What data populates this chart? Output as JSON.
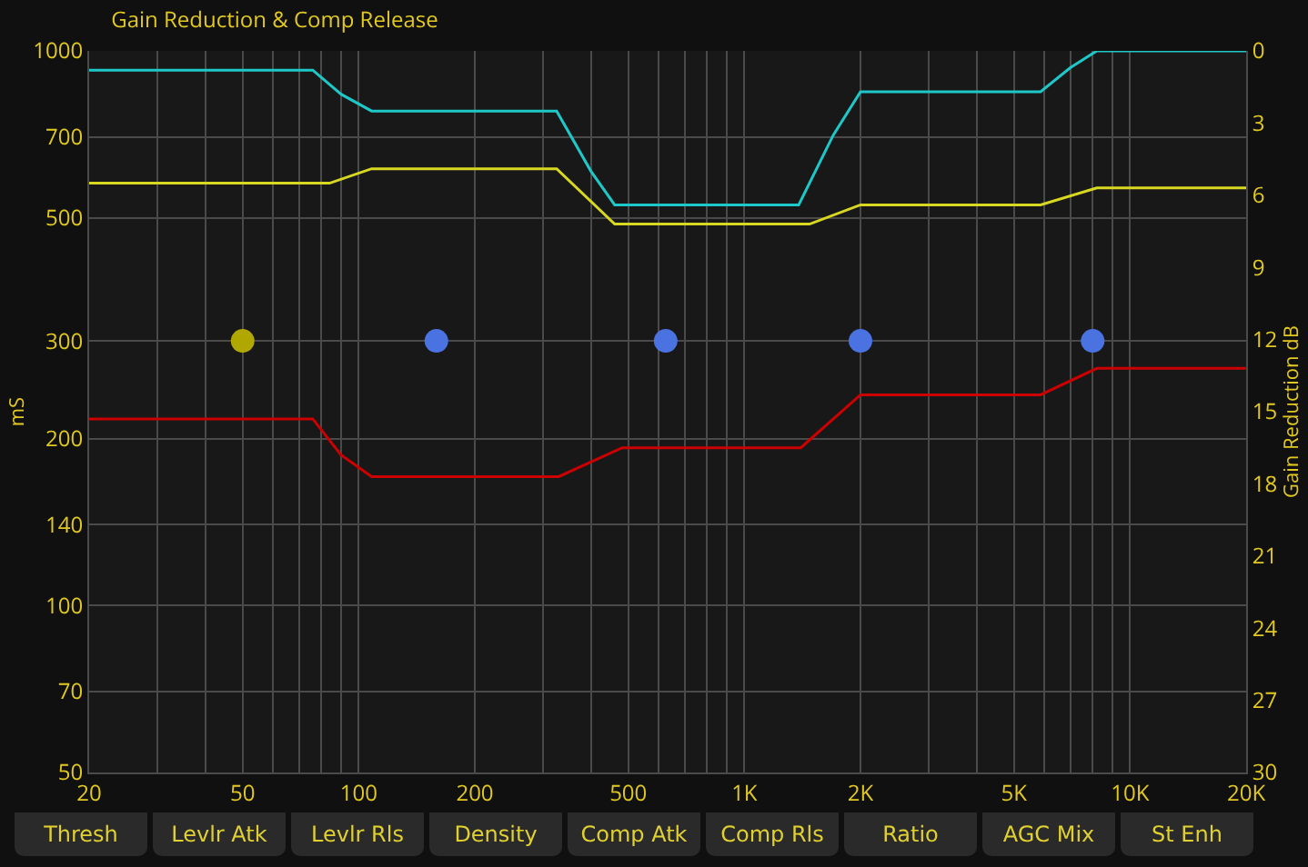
{
  "chart_data": {
    "type": "line",
    "title": "Gain Reduction & Comp Release",
    "ylabel": "mS",
    "y2label": "Gain Reduction dB",
    "log": "xy",
    "grid": true,
    "marker": "none",
    "line_style": "solid",
    "xlim": [
      20,
      20000
    ],
    "xticks": [
      20,
      {
        "value": 30,
        "label": null
      },
      {
        "value": 40,
        "label": null
      },
      50,
      {
        "value": 60,
        "label": null
      },
      {
        "value": 70,
        "label": null
      },
      {
        "value": 80,
        "label": null
      },
      {
        "value": 90,
        "label": null
      },
      100,
      200,
      {
        "value": 300,
        "label": null
      },
      {
        "value": 400,
        "label": null
      },
      500,
      {
        "value": 600,
        "label": null
      },
      {
        "value": 700,
        "label": null
      },
      {
        "value": 800,
        "label": null
      },
      {
        "value": 900,
        "label": null
      },
      {
        "value": 1000,
        "label": "1K"
      },
      {
        "value": 2000,
        "label": "2K"
      },
      {
        "value": 3000,
        "label": null
      },
      {
        "value": 4000,
        "label": null
      },
      {
        "value": 5000,
        "label": "5K"
      },
      {
        "value": 6000,
        "label": null
      },
      {
        "value": 7000,
        "label": null
      },
      {
        "value": 8000,
        "label": null
      },
      {
        "value": 9000,
        "label": null
      },
      {
        "value": 10000,
        "label": "10K"
      },
      {
        "value": 20000,
        "label": "20K"
      }
    ],
    "ylim": [
      50,
      1000
    ],
    "yticks": [
      50,
      70,
      100,
      140,
      200,
      300,
      500,
      700,
      1000
    ],
    "y2lim": [
      30,
      0
    ],
    "y2ticks": [
      0,
      3,
      6,
      9,
      12,
      15,
      18,
      21,
      24,
      27,
      30
    ],
    "series": [
      {
        "color": "#1fc8c8",
        "axis": "y2",
        "x": [
          20,
          76,
          90,
          108,
          326,
          400,
          461,
          1383,
          1700,
          2000,
          5861,
          7000,
          8200,
          20000
        ],
        "values": [
          0.8,
          0.8,
          1.8,
          2.5,
          2.5,
          5.0,
          6.4,
          6.4,
          3.5,
          1.7,
          1.7,
          0.7,
          0,
          0
        ]
      },
      {
        "color": "#d8d820",
        "axis": "y2",
        "x": [
          20,
          84,
          108,
          326,
          461,
          1476,
          2000,
          5861,
          8200,
          20000
        ],
        "values": [
          5.5,
          5.5,
          4.9,
          4.9,
          7.2,
          7.2,
          6.4,
          6.4,
          5.7,
          5.7
        ]
      },
      {
        "color": "#cc0000",
        "axis": "y2",
        "x": [
          20,
          76,
          90,
          108,
          330,
          482,
          1400,
          2000,
          5861,
          8200,
          20000
        ],
        "values": [
          15.3,
          15.3,
          16.8,
          17.7,
          17.7,
          16.5,
          16.5,
          14.3,
          14.3,
          13.2,
          13.2
        ]
      },
      {
        "type": "scatter",
        "marker": "circle",
        "x": [
          50,
          159,
          625,
          2000,
          8000
        ],
        "values": [
          300,
          300,
          300,
          300,
          300
        ],
        "colors": [
          "#b0a800",
          "#4a72e0",
          "#4a72e0",
          "#4a72e0",
          "#4a72e0"
        ]
      }
    ],
    "annotations": [
      "Thresh",
      "Levlr Atk",
      "Levlr Rls",
      "Density",
      "Comp Atk",
      "Comp Rls",
      "Ratio",
      "AGC Mix",
      "St Enh"
    ]
  }
}
